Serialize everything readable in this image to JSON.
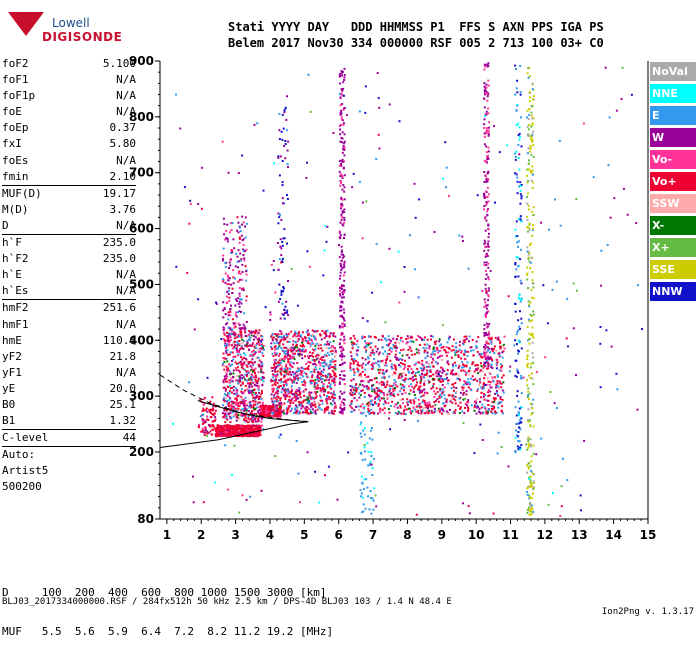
{
  "logo": {
    "line1": "Lowell",
    "line2": "DIGISONDE"
  },
  "header": {
    "line1": "Stati YYYY DAY   DDD HHMMSS P1  FFS S AXN PPS IGA PS",
    "line2": "Belem 2017 Nov30 334 000000 RSF 005 2 713 100 03+ C0"
  },
  "params": {
    "group1": [
      {
        "k": "foF2",
        "v": "5.100"
      },
      {
        "k": "foF1",
        "v": "N/A"
      },
      {
        "k": "foF1p",
        "v": "N/A"
      },
      {
        "k": "foE",
        "v": "N/A"
      },
      {
        "k": "foEp",
        "v": "0.37"
      },
      {
        "k": "fxI",
        "v": "5.80"
      },
      {
        "k": "foEs",
        "v": "N/A"
      },
      {
        "k": "fmin",
        "v": "2.10"
      }
    ],
    "group2": [
      {
        "k": "MUF(D)",
        "v": "19.17"
      },
      {
        "k": "M(D)",
        "v": "3.76"
      },
      {
        "k": "D",
        "v": "N/A"
      }
    ],
    "group3": [
      {
        "k": "h`F",
        "v": "235.0"
      },
      {
        "k": "h`F2",
        "v": "235.0"
      },
      {
        "k": "h`E",
        "v": "N/A"
      },
      {
        "k": "h`Es",
        "v": "N/A"
      }
    ],
    "group4": [
      {
        "k": "hmF2",
        "v": "251.6"
      },
      {
        "k": "hmF1",
        "v": "N/A"
      },
      {
        "k": "hmE",
        "v": "110.0"
      },
      {
        "k": "yF2",
        "v": "21.8"
      },
      {
        "k": "yF1",
        "v": "N/A"
      },
      {
        "k": "yE",
        "v": "20.0"
      },
      {
        "k": "B0",
        "v": "25.1"
      },
      {
        "k": "B1",
        "v": "1.32"
      }
    ],
    "clevel": {
      "k": "C-level",
      "v": "44"
    },
    "auto": [
      "Auto:",
      "Artist5",
      "500200"
    ]
  },
  "legend": [
    {
      "label": "NoVal",
      "color": "#aaaaaa"
    },
    {
      "label": "NNE",
      "color": "#00ffff"
    },
    {
      "label": "E",
      "color": "#3399ee"
    },
    {
      "label": "W",
      "color": "#990099"
    },
    {
      "label": "Vo-",
      "color": "#ff3399"
    },
    {
      "label": "Vo+",
      "color": "#ee0033"
    },
    {
      "label": "SSW",
      "color": "#ffaaaa"
    },
    {
      "label": "X-",
      "color": "#007700"
    },
    {
      "label": "X+",
      "color": "#66bb44"
    },
    {
      "label": "SSE",
      "color": "#cccc00"
    },
    {
      "label": "NNW",
      "color": "#1111cc"
    }
  ],
  "table": {
    "row1": "D     100  200  400  600  800 1000 1500 3000 [km]",
    "row2": "MUF   5.5  5.6  5.9  6.4  7.2  8.2 11.2 19.2 [MHz]"
  },
  "footer": {
    "left": "BLJ03_2017334000000.RSF / 284fx512h 50 kHz 2.5 km / DPS-4D BLJ03 103 / 1.4 N 48.4 E",
    "right": "Ion2Png v. 1.3.17"
  },
  "chart_data": {
    "type": "scatter",
    "xlabel": "",
    "ylabel": "",
    "xlim": [
      0.8,
      15
    ],
    "ylim": [
      80,
      900
    ],
    "xticks": [
      1,
      2,
      3,
      4,
      5,
      6,
      7,
      8,
      9,
      10,
      11,
      12,
      13,
      14,
      15
    ],
    "yticks": [
      80,
      200,
      300,
      400,
      500,
      600,
      700,
      800,
      900
    ],
    "grid": false,
    "legend_position": "right",
    "clusters": [
      {
        "xmin": 1.9,
        "xmax": 2.4,
        "ymin": 232,
        "ymax": 300,
        "n": 90,
        "mix": [
          [
            "Vo+",
            0.7
          ],
          [
            "Vo-",
            0.15
          ],
          [
            "W",
            0.1
          ],
          [
            "E",
            0.05
          ]
        ]
      },
      {
        "xmin": 2.4,
        "xmax": 3.7,
        "ymin": 230,
        "ymax": 250,
        "n": 500,
        "mix": [
          [
            "Vo+",
            0.85
          ],
          [
            "Vo-",
            0.1
          ],
          [
            "W",
            0.05
          ]
        ]
      },
      {
        "xmin": 2.6,
        "xmax": 3.8,
        "ymin": 255,
        "ymax": 420,
        "n": 700,
        "mix": [
          [
            "Vo+",
            0.35
          ],
          [
            "W",
            0.25
          ],
          [
            "E",
            0.15
          ],
          [
            "Vo-",
            0.15
          ],
          [
            "SSW",
            0.05
          ],
          [
            "X-",
            0.03
          ],
          [
            "NNE",
            0.02
          ]
        ]
      },
      {
        "xmin": 2.6,
        "xmax": 3.3,
        "ymin": 420,
        "ymax": 625,
        "n": 180,
        "mix": [
          [
            "W",
            0.5
          ],
          [
            "Vo-",
            0.25
          ],
          [
            "E",
            0.15
          ],
          [
            "Vo+",
            0.1
          ]
        ]
      },
      {
        "xmin": 3.7,
        "xmax": 4.3,
        "ymin": 265,
        "ymax": 285,
        "n": 220,
        "mix": [
          [
            "Vo+",
            0.9
          ],
          [
            "Vo-",
            0.1
          ]
        ]
      },
      {
        "xmin": 4.0,
        "xmax": 5.9,
        "ymin": 270,
        "ymax": 420,
        "n": 900,
        "mix": [
          [
            "Vo+",
            0.4
          ],
          [
            "W",
            0.2
          ],
          [
            "E",
            0.2
          ],
          [
            "Vo-",
            0.12
          ],
          [
            "X-",
            0.04
          ],
          [
            "SSW",
            0.04
          ]
        ]
      },
      {
        "xmin": 4.2,
        "xmax": 4.5,
        "ymin": 440,
        "ymax": 840,
        "n": 80,
        "mix": [
          [
            "NNW",
            0.55
          ],
          [
            "W",
            0.35
          ],
          [
            "E",
            0.1
          ]
        ]
      },
      {
        "xmin": 6.0,
        "xmax": 6.15,
        "ymin": 270,
        "ymax": 890,
        "n": 260,
        "mix": [
          [
            "W",
            0.8
          ],
          [
            "Vo-",
            0.2
          ]
        ]
      },
      {
        "xmin": 6.6,
        "xmax": 7.0,
        "ymin": 90,
        "ymax": 290,
        "n": 60,
        "mix": [
          [
            "E",
            0.8
          ],
          [
            "NNE",
            0.2
          ]
        ]
      },
      {
        "xmin": 6.3,
        "xmax": 10.8,
        "ymin": 270,
        "ymax": 410,
        "n": 1200,
        "mix": [
          [
            "Vo+",
            0.4
          ],
          [
            "W",
            0.2
          ],
          [
            "E",
            0.2
          ],
          [
            "Vo-",
            0.12
          ],
          [
            "X-",
            0.04
          ],
          [
            "SSW",
            0.04
          ]
        ]
      },
      {
        "xmin": 10.2,
        "xmax": 10.35,
        "ymin": 360,
        "ymax": 900,
        "n": 200,
        "mix": [
          [
            "W",
            0.7
          ],
          [
            "Vo-",
            0.3
          ]
        ]
      },
      {
        "xmin": 11.1,
        "xmax": 11.3,
        "ymin": 200,
        "ymax": 900,
        "n": 150,
        "mix": [
          [
            "NNW",
            0.5
          ],
          [
            "E",
            0.3
          ],
          [
            "NNE",
            0.2
          ]
        ]
      },
      {
        "xmin": 11.45,
        "xmax": 11.65,
        "ymin": 85,
        "ymax": 890,
        "n": 260,
        "mix": [
          [
            "SSE",
            0.5
          ],
          [
            "X+",
            0.25
          ],
          [
            "NoVal",
            0.15
          ],
          [
            "E",
            0.1
          ]
        ]
      },
      {
        "xmin": 1.0,
        "xmax": 14.8,
        "ymin": 85,
        "ymax": 895,
        "n": 260,
        "mix": [
          [
            "W",
            0.25
          ],
          [
            "NNW",
            0.2
          ],
          [
            "E",
            0.2
          ],
          [
            "Vo-",
            0.1
          ],
          [
            "Vo+",
            0.1
          ],
          [
            "NNE",
            0.1
          ],
          [
            "X+",
            0.05
          ]
        ]
      }
    ],
    "curves": [
      {
        "style": "dashed",
        "points": [
          [
            0.8,
            338
          ],
          [
            1.5,
            310
          ],
          [
            2.3,
            286
          ],
          [
            3.3,
            268
          ],
          [
            4.6,
            257
          ],
          [
            5.2,
            254
          ]
        ]
      },
      {
        "style": "solid",
        "points": [
          [
            0.8,
            208
          ],
          [
            2.5,
            222
          ],
          [
            4.6,
            250
          ],
          [
            5.1,
            254
          ]
        ]
      },
      {
        "style": "solid",
        "points": [
          [
            1.9,
            292
          ],
          [
            3.0,
            272
          ],
          [
            3.6,
            264
          ],
          [
            4.0,
            260
          ],
          [
            5.1,
            254
          ]
        ]
      }
    ]
  }
}
